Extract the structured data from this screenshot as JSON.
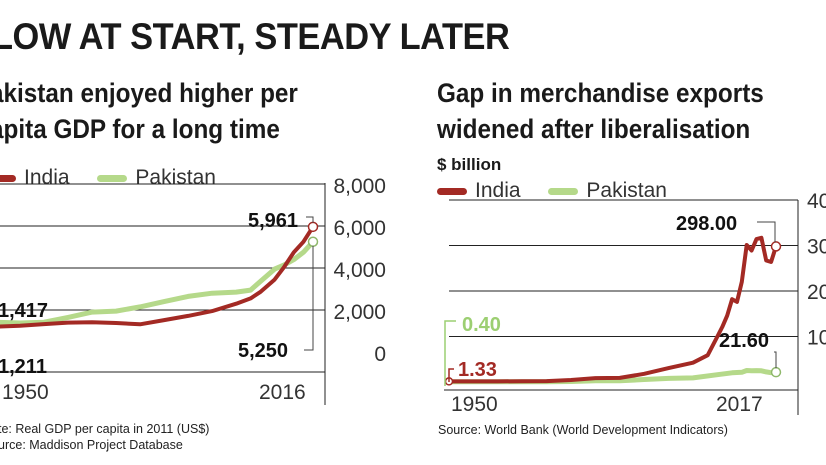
{
  "headline": "LOW AT START, STEADY LATER",
  "left_chart": {
    "subtitle_line1": "akistan enjoyed higher per",
    "subtitle_line2": "apita GDP for a long time",
    "legend": [
      {
        "label": "India",
        "color": "#a32a24"
      },
      {
        "label": "Pakistan",
        "color": "#b5d98a"
      }
    ],
    "note_line1": "te: Real GDP per capita in 2011 (US$)",
    "note_line2": "urce: Maddison Project Database"
  },
  "right_chart": {
    "subtitle_line1": "Gap in merchandise  exports",
    "subtitle_line2": "widened after liberalisation",
    "unit": "$ billion",
    "legend": [
      {
        "label": "India",
        "color": "#a32a24"
      },
      {
        "label": "Pakistan",
        "color": "#b5d98a"
      }
    ],
    "source": "Source: World Bank (World Development Indicators)"
  },
  "chart_data": [
    {
      "type": "line",
      "title": "Pakistan enjoyed higher per capita GDP for a long time",
      "xlabel": "",
      "ylabel": "",
      "xlim": [
        1950,
        2016
      ],
      "ylim": [
        0,
        8000
      ],
      "y_ticks": [
        "0",
        "2,000",
        "4,000",
        "6,000",
        "8,000"
      ],
      "x_tick_labels": [
        "1950",
        "2016"
      ],
      "series": [
        {
          "name": "India",
          "color": "#a32a24",
          "x": [
            1950,
            1955,
            1960,
            1965,
            1970,
            1975,
            1980,
            1985,
            1990,
            1995,
            2000,
            2003,
            2005,
            2008,
            2010,
            2012,
            2014,
            2016
          ],
          "y": [
            1211,
            1250,
            1330,
            1400,
            1420,
            1380,
            1320,
            1520,
            1720,
            1950,
            2300,
            2550,
            2850,
            3450,
            4050,
            4750,
            5250,
            5961
          ]
        },
        {
          "name": "Pakistan",
          "color": "#b5d98a",
          "x": [
            1950,
            1955,
            1960,
            1965,
            1970,
            1975,
            1980,
            1985,
            1990,
            1995,
            2000,
            2003,
            2005,
            2008,
            2010,
            2012,
            2014,
            2016
          ],
          "y": [
            1417,
            1380,
            1420,
            1650,
            1900,
            1950,
            2150,
            2400,
            2650,
            2800,
            2850,
            2950,
            3350,
            3950,
            4150,
            4400,
            4750,
            5250
          ]
        }
      ],
      "annotations": [
        {
          "text": "1,417",
          "series": "Pakistan",
          "year": 1950
        },
        {
          "text": "1,211",
          "series": "India",
          "year": 1950
        },
        {
          "text": "5,961",
          "series": "India",
          "year": 2016
        },
        {
          "text": "5,250",
          "series": "Pakistan",
          "year": 2016
        }
      ]
    },
    {
      "type": "line",
      "title": "Gap in merchandise exports widened after liberalisation",
      "ylabel": "$ billion",
      "xlim": [
        1950,
        2017
      ],
      "ylim": [
        0,
        400
      ],
      "y_ticks": [
        "40",
        "30",
        "20",
        "10"
      ],
      "x_tick_labels": [
        "1950",
        "2017"
      ],
      "series": [
        {
          "name": "India",
          "color": "#a32a24",
          "x": [
            1950,
            1955,
            1960,
            1965,
            1970,
            1975,
            1980,
            1985,
            1990,
            1995,
            2000,
            2003,
            2005,
            2006,
            2007,
            2008,
            2009,
            2010,
            2011,
            2012,
            2013,
            2014,
            2015,
            2016,
            2017
          ],
          "y": [
            1.33,
            1.3,
            1.35,
            1.7,
            2,
            4.4,
            8.5,
            9.1,
            18,
            30.6,
            42.4,
            58.9,
            100,
            121,
            146,
            182,
            176,
            220,
            301,
            289,
            314,
            317,
            267,
            264,
            298
          ]
        },
        {
          "name": "Pakistan",
          "color": "#b5d98a",
          "x": [
            1950,
            1955,
            1960,
            1965,
            1970,
            1975,
            1980,
            1985,
            1990,
            1995,
            2000,
            2005,
            2008,
            2010,
            2011,
            2012,
            2013,
            2014,
            2015,
            2016,
            2017
          ],
          "y": [
            0.4,
            0.4,
            0.4,
            0.5,
            0.7,
            1.0,
            2.6,
            2.7,
            5.6,
            8.0,
            9.0,
            16.0,
            20.3,
            21.4,
            25.3,
            24.6,
            25.1,
            24.7,
            22.2,
            20.5,
            21.6
          ]
        }
      ],
      "annotations": [
        {
          "text": "0.40",
          "series": "Pakistan",
          "year": 1950
        },
        {
          "text": "1.33",
          "series": "India",
          "year": 1950
        },
        {
          "text": "298.00",
          "series": "India",
          "year": 2017
        },
        {
          "text": "21.60",
          "series": "Pakistan",
          "year": 2017
        }
      ]
    }
  ]
}
